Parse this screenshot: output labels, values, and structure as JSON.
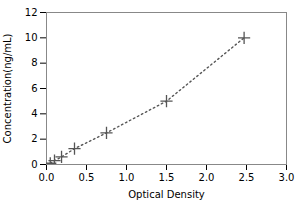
{
  "chart_data": {
    "type": "line",
    "x": [
      0.047,
      0.1,
      0.188,
      0.35,
      0.75,
      1.5,
      2.47
    ],
    "values": [
      0.1,
      0.3,
      0.6,
      1.25,
      2.5,
      5.0,
      10.0
    ],
    "xlabel": "Optical Density",
    "ylabel": "Concentration(ng/mL)",
    "xlim": [
      0,
      3
    ],
    "ylim": [
      0,
      12
    ],
    "xticks": [
      {
        "value": 0,
        "label": "0.0"
      },
      0.5,
      {
        "value": 1,
        "label": "1.0"
      },
      1.5,
      {
        "value": 2,
        "label": "2.0"
      },
      2.5,
      {
        "value": 3,
        "label": "3.0"
      }
    ],
    "yticks": [
      0,
      2,
      4,
      6,
      8,
      10,
      12
    ],
    "color": "#555555",
    "marker": "plus",
    "line_style": "dotted"
  }
}
